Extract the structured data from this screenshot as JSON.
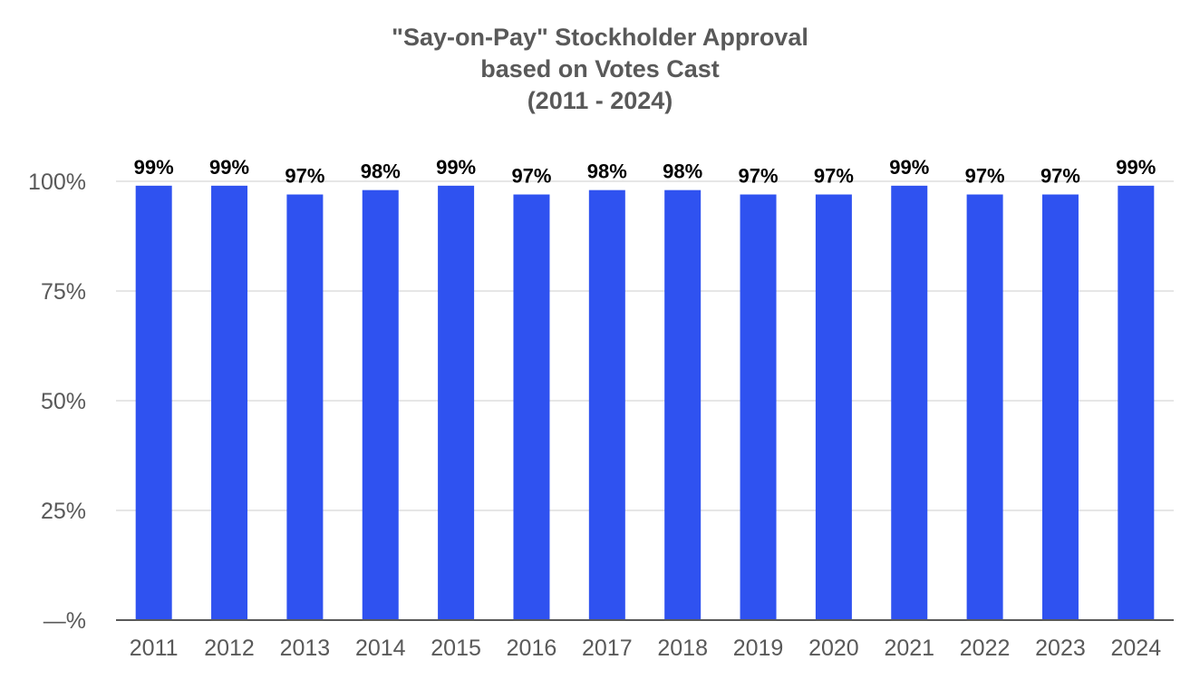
{
  "chart_data": {
    "type": "bar",
    "title_lines": [
      "\"Say-on-Pay\" Stockholder Approval",
      "based on Votes Cast",
      "(2011 - 2024)"
    ],
    "categories": [
      "2011",
      "2012",
      "2013",
      "2014",
      "2015",
      "2016",
      "2017",
      "2018",
      "2019",
      "2020",
      "2021",
      "2022",
      "2023",
      "2024"
    ],
    "values": [
      99,
      99,
      97,
      98,
      99,
      97,
      98,
      98,
      97,
      97,
      99,
      97,
      97,
      99
    ],
    "data_labels": [
      "99%",
      "99%",
      "97%",
      "98%",
      "99%",
      "97%",
      "98%",
      "98%",
      "97%",
      "97%",
      "99%",
      "97%",
      "97%",
      "99%"
    ],
    "ylim": [
      0,
      100
    ],
    "yticks": [
      {
        "value": 0,
        "label": "—%"
      },
      {
        "value": 25,
        "label": "25%"
      },
      {
        "value": 50,
        "label": "50%"
      },
      {
        "value": 75,
        "label": "75%"
      },
      {
        "value": 100,
        "label": "100%"
      }
    ],
    "xlabel": "",
    "ylabel": "",
    "grid": true,
    "legend": "none",
    "colors": {
      "bar": "#2f52f0",
      "grid": "#e6e6e6",
      "axis": "#595959",
      "title": "#595959",
      "data_label": "#000000"
    }
  }
}
